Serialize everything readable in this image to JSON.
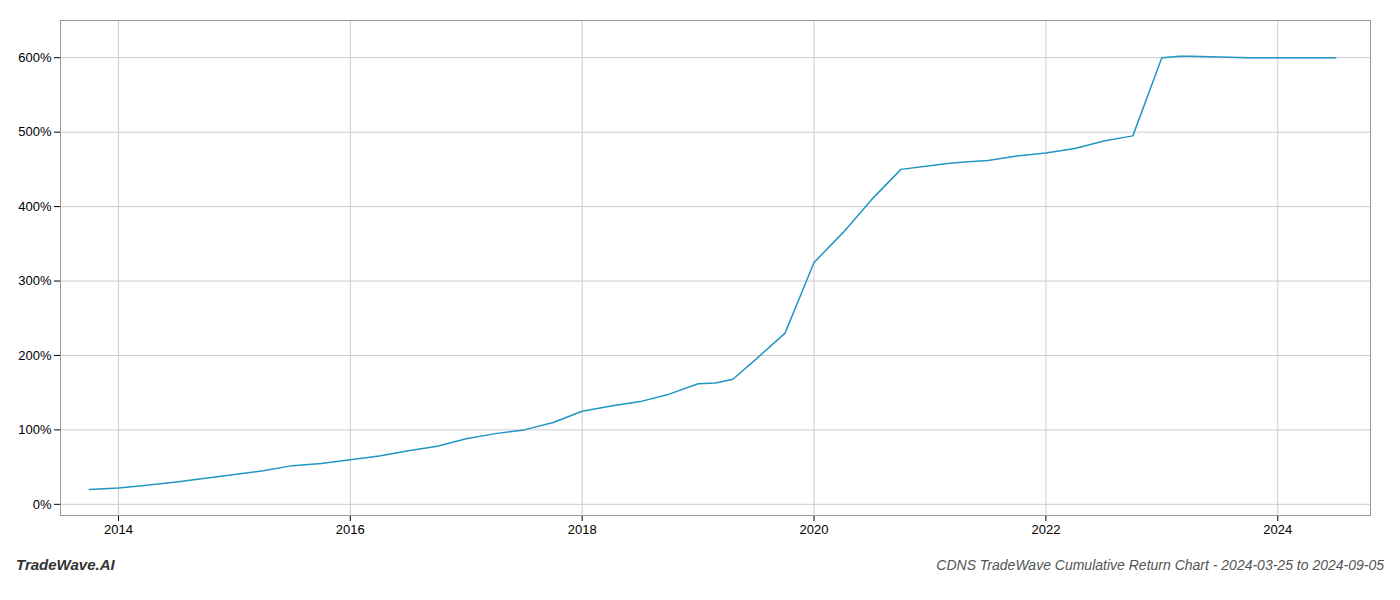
{
  "chart_data": {
    "type": "line",
    "title": "CDNS TradeWave Cumulative Return Chart - 2024-03-25 to 2024-09-05",
    "annotations": [
      "TradeWave.AI"
    ],
    "x": [
      2013.75,
      2014.0,
      2014.2,
      2014.5,
      2014.75,
      2015.0,
      2015.25,
      2015.5,
      2015.75,
      2016.0,
      2016.25,
      2016.5,
      2016.75,
      2017.0,
      2017.25,
      2017.5,
      2017.75,
      2018.0,
      2018.25,
      2018.5,
      2018.75,
      2019.0,
      2019.15,
      2019.3,
      2019.5,
      2019.75,
      2020.0,
      2020.25,
      2020.5,
      2020.75,
      2021.0,
      2021.15,
      2021.3,
      2021.5,
      2021.75,
      2022.0,
      2022.25,
      2022.5,
      2022.75,
      2023.0,
      2023.15,
      2023.25,
      2023.5,
      2023.75,
      2024.0,
      2024.5
    ],
    "values": [
      20,
      22,
      25,
      30,
      35,
      40,
      45,
      52,
      55,
      60,
      65,
      72,
      78,
      88,
      95,
      100,
      110,
      125,
      132,
      138,
      148,
      162,
      163,
      168,
      195,
      230,
      325,
      365,
      410,
      450,
      455,
      458,
      460,
      462,
      468,
      472,
      478,
      488,
      495,
      600,
      602,
      602,
      601,
      600,
      600,
      600
    ],
    "color": "#2196c4",
    "xlim": [
      2013.5,
      2024.8
    ],
    "ylim": [
      -15,
      650
    ],
    "xticks": [
      2014,
      2016,
      2018,
      2020,
      2022,
      2024
    ],
    "yticks": [
      {
        "value": 0,
        "label": "0%"
      },
      {
        "value": 100,
        "label": "100%"
      },
      {
        "value": 200,
        "label": "200%"
      },
      {
        "value": 300,
        "label": "300%"
      },
      {
        "value": 400,
        "label": "400%"
      },
      {
        "value": 500,
        "label": "500%"
      },
      {
        "value": 600,
        "label": "600%"
      }
    ],
    "grid": true
  }
}
